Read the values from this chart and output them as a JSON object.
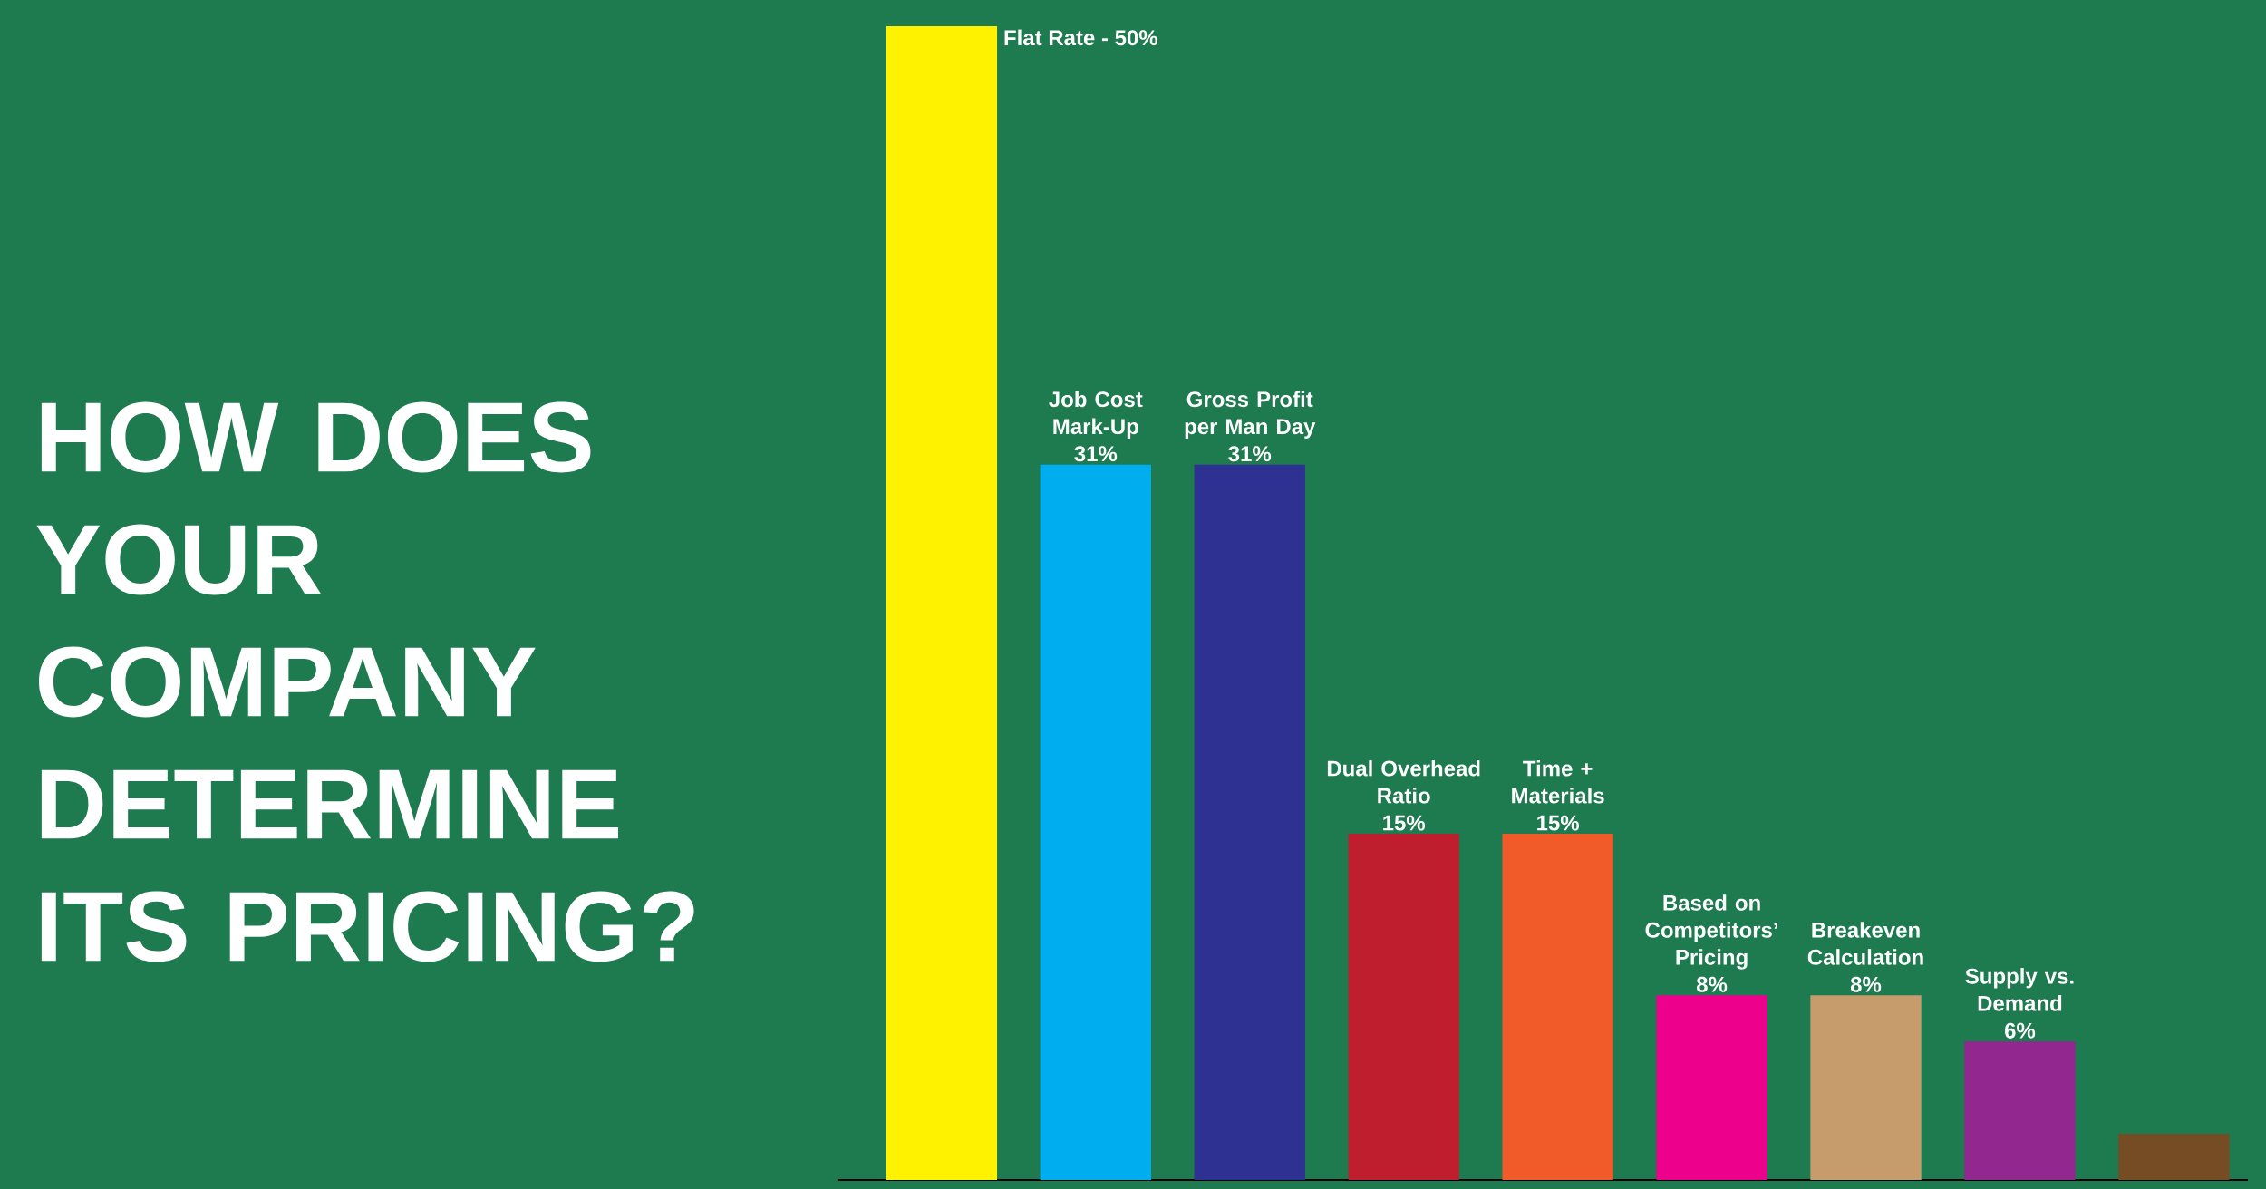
{
  "chart_data": {
    "type": "bar",
    "title": "HOW DOES YOUR COMPANY DETERMINE ITS PRICING?",
    "categories": [
      null,
      "Job Cost Mark-Up",
      "Gross Profit per Man Day",
      "Dual Overhead Ratio",
      "Time + Materials",
      "Based on Competitors’ Pricing",
      "Breakeven Calculation",
      "Supply vs. Demand",
      null
    ],
    "values": [
      50,
      31,
      31,
      15,
      15,
      8,
      8,
      6,
      2
    ],
    "colors": [
      "#fff200",
      "#00aeef",
      "#2e3192",
      "#be1e2d",
      "#f15a29",
      "#ec008c",
      "#c69c6d",
      "#92278f",
      "#754c24"
    ],
    "annotations": [
      "Flat Rate - 50%"
    ],
    "value_labels": [
      null,
      "31%",
      "31%",
      "15%",
      "15%",
      "8%",
      "8%",
      "6%",
      null
    ]
  }
}
